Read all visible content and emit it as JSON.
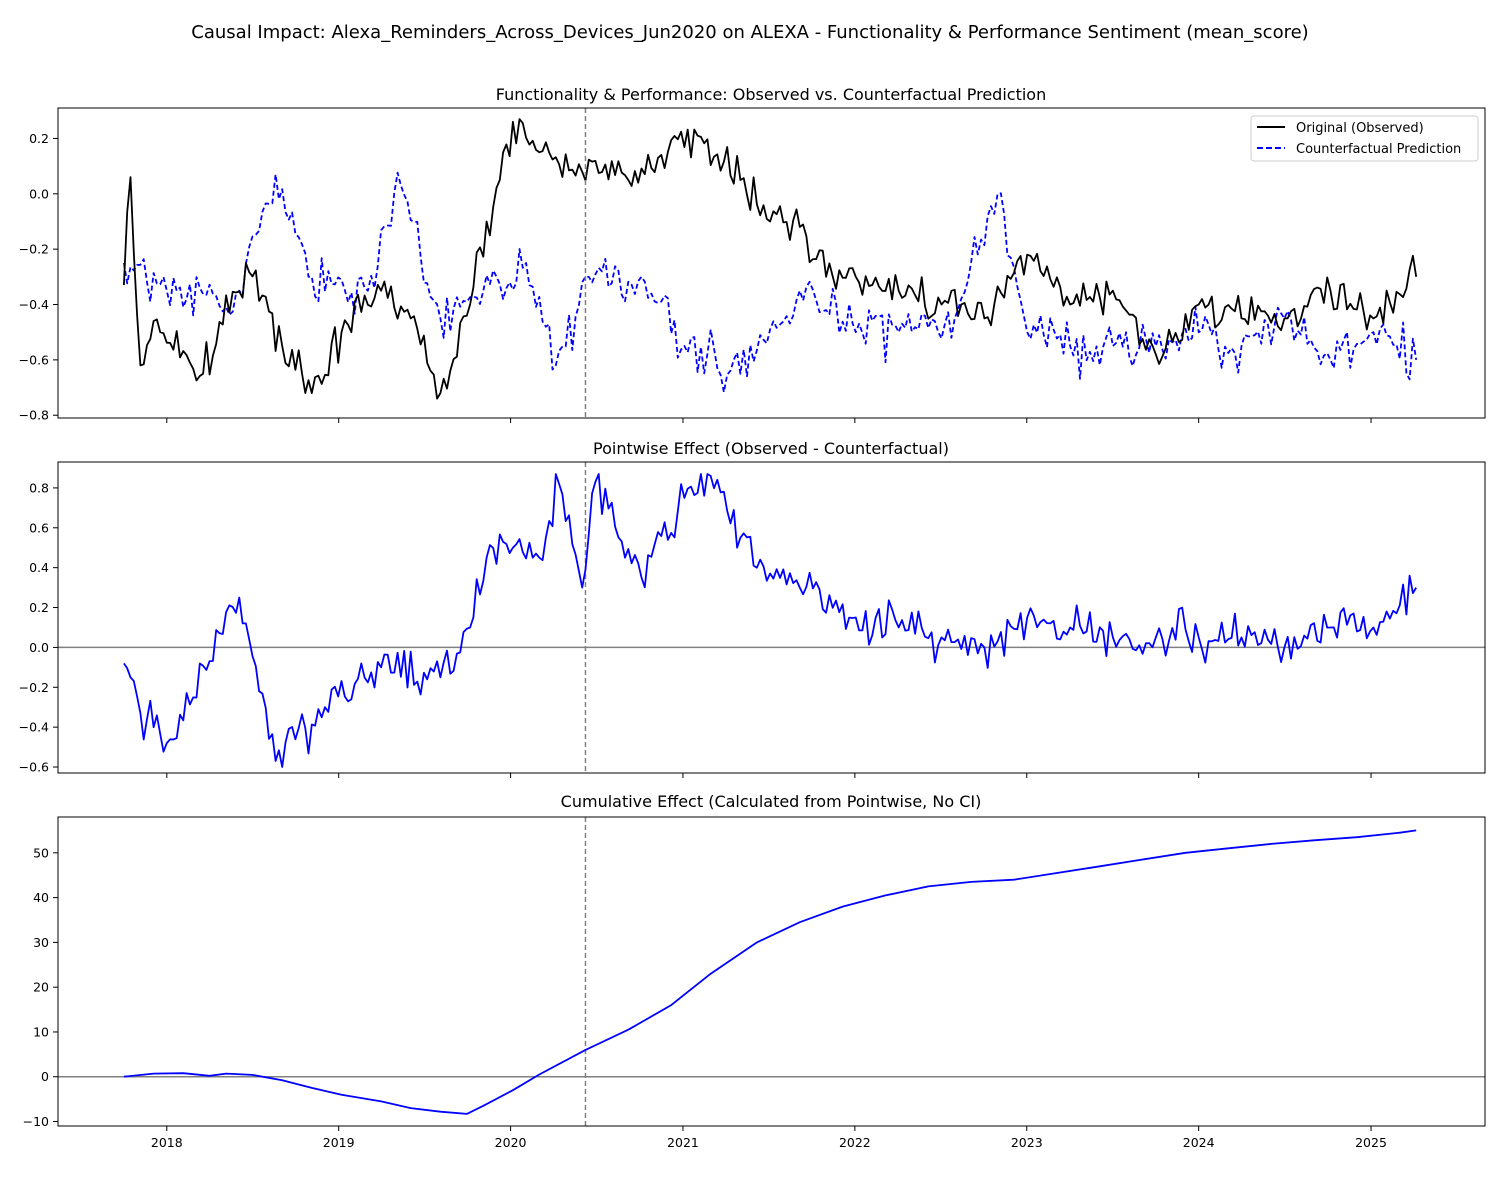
{
  "figure": {
    "title": "Causal Impact: Alexa_Reminders_Across_Devices_Jun2020 on ALEXA - Functionality & Performance Sentiment (mean_score)"
  },
  "colors": {
    "observed": "#000000",
    "counterfactual": "#0000ff",
    "effect": "#0000ff",
    "zero_line": "#808080",
    "intervention_line": "#808080"
  },
  "intervention_date": "2020-06-08",
  "x_axis": {
    "range": [
      "2017-05-15",
      "2025-08-31"
    ],
    "ticks": [
      "2018",
      "2019",
      "2020",
      "2021",
      "2022",
      "2023",
      "2024",
      "2025"
    ]
  },
  "chart_data": [
    {
      "type": "line",
      "title": "Functionality & Performance: Observed vs. Counterfactual Prediction",
      "xlabel": "",
      "ylabel": "",
      "ylim": [
        -0.81,
        0.31
      ],
      "yticks": [
        0.2,
        0.0,
        -0.2,
        -0.4,
        -0.6,
        -0.8
      ],
      "ytick_labels": [
        "0.2",
        "0.0",
        "−0.2",
        "−0.4",
        "−0.6",
        "−0.8"
      ],
      "legend": "top-right",
      "grid": false,
      "series": [
        {
          "name": "Original (Observed)",
          "style": "solid",
          "color": "#000000",
          "keypoints": [
            [
              "2017-10-02",
              -0.33
            ],
            [
              "2017-10-16",
              0.06
            ],
            [
              "2017-11-06",
              -0.62
            ],
            [
              "2017-12-18",
              -0.5
            ],
            [
              "2018-03-19",
              -0.65
            ],
            [
              "2018-06-18",
              -0.25
            ],
            [
              "2018-09-03",
              -0.55
            ],
            [
              "2018-11-05",
              -0.72
            ],
            [
              "2019-01-07",
              -0.5
            ],
            [
              "2019-04-01",
              -0.35
            ],
            [
              "2019-06-03",
              -0.45
            ],
            [
              "2019-08-05",
              -0.72
            ],
            [
              "2019-10-07",
              -0.4
            ],
            [
              "2019-11-11",
              -0.1
            ],
            [
              "2019-12-09",
              0.05
            ],
            [
              "2020-01-06",
              0.26
            ],
            [
              "2020-03-02",
              0.15
            ],
            [
              "2020-06-01",
              0.08
            ],
            [
              "2020-09-07",
              0.05
            ],
            [
              "2020-11-09",
              0.13
            ],
            [
              "2021-02-01",
              0.21
            ],
            [
              "2021-05-03",
              0.05
            ],
            [
              "2021-07-05",
              -0.1
            ],
            [
              "2021-09-06",
              -0.12
            ],
            [
              "2021-11-01",
              -0.3
            ],
            [
              "2022-01-03",
              -0.3
            ],
            [
              "2022-04-04",
              -0.35
            ],
            [
              "2022-07-04",
              -0.4
            ],
            [
              "2022-10-03",
              -0.45
            ],
            [
              "2023-01-02",
              -0.22
            ],
            [
              "2023-04-03",
              -0.4
            ],
            [
              "2023-07-03",
              -0.35
            ],
            [
              "2023-10-02",
              -0.58
            ],
            [
              "2024-01-01",
              -0.4
            ],
            [
              "2024-04-01",
              -0.45
            ],
            [
              "2024-07-01",
              -0.45
            ],
            [
              "2024-10-07",
              -0.35
            ],
            [
              "2025-01-06",
              -0.45
            ],
            [
              "2025-04-07",
              -0.3
            ]
          ]
        },
        {
          "name": "Counterfactual Prediction",
          "style": "dashed",
          "color": "#0000ff",
          "keypoints": [
            [
              "2017-10-02",
              -0.25
            ],
            [
              "2018-01-01",
              -0.35
            ],
            [
              "2018-06-04",
              -0.35
            ],
            [
              "2018-08-20",
              0.07
            ],
            [
              "2018-11-05",
              -0.3
            ],
            [
              "2019-03-04",
              -0.35
            ],
            [
              "2019-05-13",
              0.03
            ],
            [
              "2019-08-05",
              -0.45
            ],
            [
              "2019-11-04",
              -0.35
            ],
            [
              "2020-02-03",
              -0.25
            ],
            [
              "2020-04-06",
              -0.62
            ],
            [
              "2020-06-15",
              -0.3
            ],
            [
              "2020-10-05",
              -0.3
            ],
            [
              "2021-01-04",
              -0.55
            ],
            [
              "2021-05-03",
              -0.65
            ],
            [
              "2021-09-06",
              -0.35
            ],
            [
              "2022-01-03",
              -0.5
            ],
            [
              "2022-04-04",
              -0.5
            ],
            [
              "2022-08-01",
              -0.45
            ],
            [
              "2022-10-31",
              0.0
            ],
            [
              "2023-01-02",
              -0.5
            ],
            [
              "2023-04-03",
              -0.55
            ],
            [
              "2023-07-03",
              -0.55
            ],
            [
              "2023-10-02",
              -0.55
            ],
            [
              "2024-01-01",
              -0.5
            ],
            [
              "2024-04-01",
              -0.55
            ],
            [
              "2024-07-01",
              -0.45
            ],
            [
              "2024-10-07",
              -0.6
            ],
            [
              "2025-01-06",
              -0.5
            ],
            [
              "2025-04-07",
              -0.6
            ]
          ]
        }
      ]
    },
    {
      "type": "line",
      "title": "Pointwise Effect (Observed - Counterfactual)",
      "xlabel": "",
      "ylabel": "",
      "ylim": [
        -0.63,
        0.93
      ],
      "yticks": [
        0.8,
        0.6,
        0.4,
        0.2,
        0.0,
        -0.2,
        -0.4,
        -0.6
      ],
      "ytick_labels": [
        "0.8",
        "0.6",
        "0.4",
        "0.2",
        "0.0",
        "−0.2",
        "−0.4",
        "−0.6"
      ],
      "reference_line": 0,
      "grid": false,
      "series": [
        {
          "style": "solid",
          "color": "#0000ff",
          "keypoints": [
            [
              "2017-10-02",
              -0.08
            ],
            [
              "2017-11-06",
              -0.33
            ],
            [
              "2018-01-01",
              -0.48
            ],
            [
              "2018-06-04",
              0.25
            ],
            [
              "2018-08-20",
              -0.57
            ],
            [
              "2018-12-03",
              -0.3
            ],
            [
              "2019-04-01",
              -0.1
            ],
            [
              "2019-08-05",
              -0.15
            ],
            [
              "2019-10-07",
              0.1
            ],
            [
              "2019-11-11",
              0.45
            ],
            [
              "2020-01-06",
              0.5
            ],
            [
              "2020-03-02",
              0.45
            ],
            [
              "2020-04-13",
              0.82
            ],
            [
              "2020-06-01",
              0.3
            ],
            [
              "2020-06-29",
              0.83
            ],
            [
              "2020-10-05",
              0.35
            ],
            [
              "2021-01-04",
              0.75
            ],
            [
              "2021-03-01",
              0.86
            ],
            [
              "2021-06-07",
              0.4
            ],
            [
              "2021-09-06",
              0.3
            ],
            [
              "2022-01-03",
              0.15
            ],
            [
              "2022-04-04",
              0.1
            ],
            [
              "2022-07-04",
              0.05
            ],
            [
              "2022-10-03",
              0.0
            ],
            [
              "2023-01-02",
              0.15
            ],
            [
              "2023-04-03",
              0.1
            ],
            [
              "2023-07-03",
              0.05
            ],
            [
              "2023-10-02",
              0.05
            ],
            [
              "2024-01-01",
              0.05
            ],
            [
              "2024-04-01",
              0.05
            ],
            [
              "2024-07-01",
              0.0
            ],
            [
              "2024-10-07",
              0.1
            ],
            [
              "2025-01-06",
              0.1
            ],
            [
              "2025-04-07",
              0.3
            ]
          ]
        }
      ]
    },
    {
      "type": "line",
      "title": "Cumulative Effect (Calculated from Pointwise, No CI)",
      "xlabel": "",
      "ylabel": "",
      "ylim": [
        -11.0,
        58.0
      ],
      "yticks": [
        50,
        40,
        30,
        20,
        10,
        0,
        -10
      ],
      "ytick_labels": [
        "50",
        "40",
        "30",
        "20",
        "10",
        "0",
        "−10"
      ],
      "reference_line": 0,
      "grid": false,
      "series": [
        {
          "style": "solid",
          "color": "#0000ff",
          "points": [
            [
              "2017-10-02",
              0.0
            ],
            [
              "2017-12-04",
              0.7
            ],
            [
              "2018-02-05",
              0.8
            ],
            [
              "2018-04-02",
              0.2
            ],
            [
              "2018-05-07",
              0.7
            ],
            [
              "2018-07-02",
              0.4
            ],
            [
              "2018-09-03",
              -0.8
            ],
            [
              "2018-11-05",
              -2.5
            ],
            [
              "2019-01-07",
              -4.0
            ],
            [
              "2019-04-01",
              -5.5
            ],
            [
              "2019-06-03",
              -7.0
            ],
            [
              "2019-08-05",
              -7.8
            ],
            [
              "2019-09-30",
              -8.3
            ],
            [
              "2019-11-04",
              -6.5
            ],
            [
              "2020-01-06",
              -3.0
            ],
            [
              "2020-03-02",
              0.5
            ],
            [
              "2020-06-08",
              6.0
            ],
            [
              "2020-09-07",
              10.5
            ],
            [
              "2020-12-07",
              16.0
            ],
            [
              "2021-03-01",
              23.0
            ],
            [
              "2021-06-07",
              30.0
            ],
            [
              "2021-09-06",
              34.5
            ],
            [
              "2021-12-06",
              38.0
            ],
            [
              "2022-03-07",
              40.5
            ],
            [
              "2022-06-06",
              42.5
            ],
            [
              "2022-09-05",
              43.5
            ],
            [
              "2022-12-05",
              44.0
            ],
            [
              "2023-03-06",
              45.5
            ],
            [
              "2023-06-05",
              47.0
            ],
            [
              "2023-09-04",
              48.5
            ],
            [
              "2023-12-04",
              50.0
            ],
            [
              "2024-03-04",
              51.0
            ],
            [
              "2024-06-03",
              52.0
            ],
            [
              "2024-09-02",
              52.8
            ],
            [
              "2024-12-02",
              53.5
            ],
            [
              "2025-03-03",
              54.5
            ],
            [
              "2025-04-07",
              55.0
            ]
          ]
        }
      ]
    }
  ]
}
